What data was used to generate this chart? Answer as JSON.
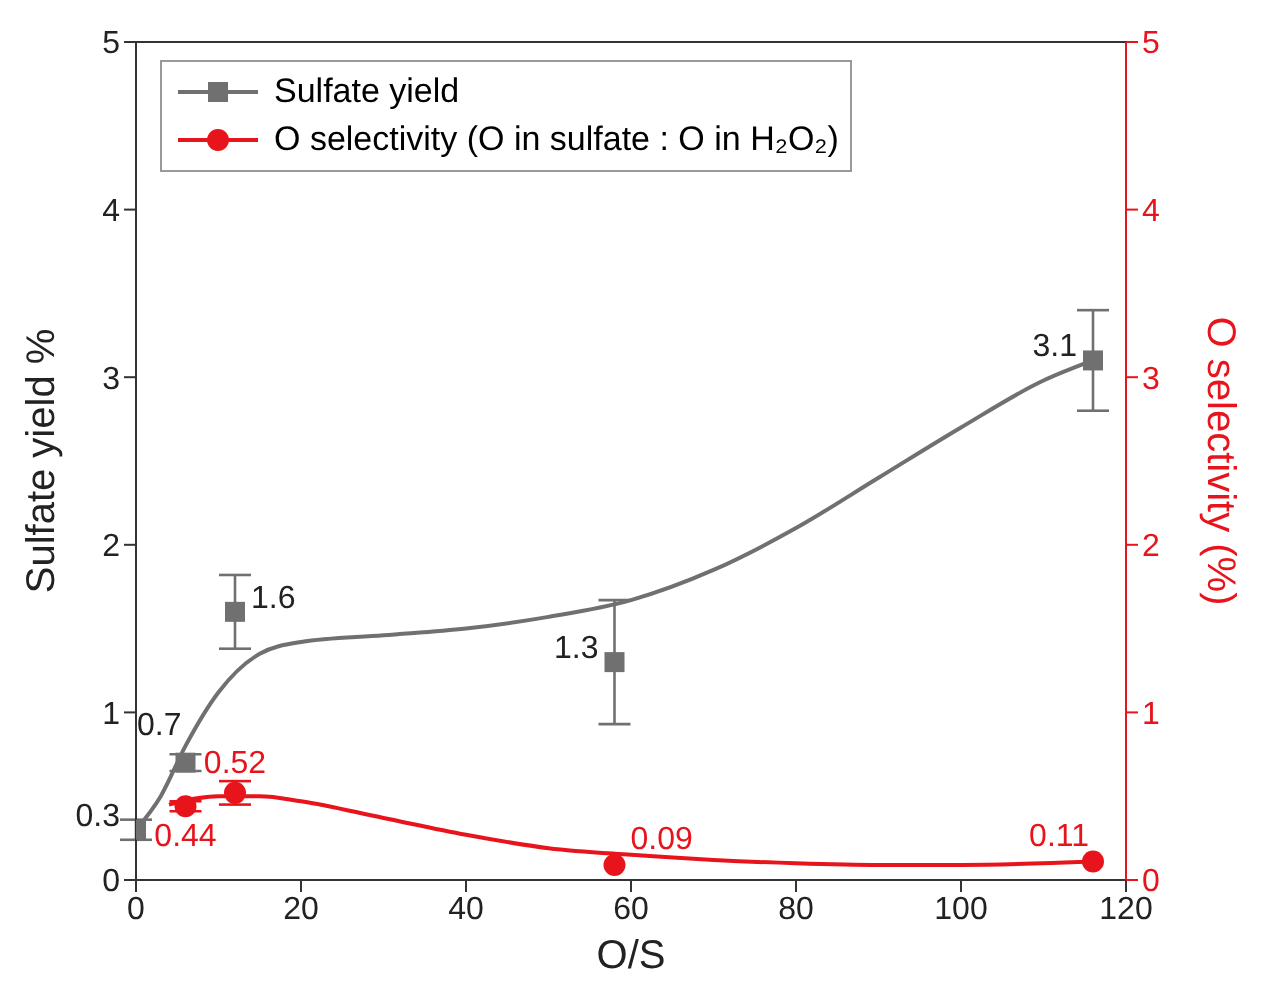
{
  "chart_data": {
    "type": "scatter",
    "xlabel": "O/S",
    "ylabel": "Sulfate yield %",
    "y2label": "O selectivity (%)",
    "xlim": [
      0,
      120
    ],
    "xticks": [
      0,
      20,
      40,
      60,
      80,
      100,
      120
    ],
    "ylim": [
      0,
      5
    ],
    "yticks": [
      0,
      1,
      2,
      3,
      4,
      5
    ],
    "y2lim": [
      0,
      5
    ],
    "y2ticks": [
      0,
      1,
      2,
      3,
      4,
      5
    ],
    "legend": "top left",
    "series": [
      {
        "name": "Sulfate yield",
        "marker": "square",
        "color": "#707070",
        "x": [
          0,
          6,
          12,
          58,
          116
        ],
        "values": [
          0.3,
          0.7,
          1.6,
          1.3,
          3.1
        ],
        "value_labels": [
          "0.3",
          "0.7",
          "1.6",
          "1.3",
          "3.1"
        ],
        "errors": [
          0.06,
          0.05,
          [
            1.38,
            1.82
          ],
          [
            0.93,
            1.67
          ],
          [
            2.8,
            3.4
          ]
        ]
      },
      {
        "name": "O selectivity (O in sulfate : O in H₂O₂)",
        "marker": "circle",
        "axis": "y2",
        "color": "#e8141c",
        "x": [
          6,
          12,
          58,
          116
        ],
        "values": [
          0.44,
          0.52,
          0.09,
          0.11
        ],
        "value_labels": [
          "0.44",
          "0.52",
          "0.09",
          "0.11"
        ],
        "errors": [
          0.03,
          0.07,
          null,
          null
        ]
      },
      {
        "type": "line",
        "marker": "none",
        "color": "#707070",
        "x": [
          0,
          3,
          6,
          10,
          15,
          20,
          30,
          40,
          50,
          60,
          70,
          80,
          90,
          100,
          110,
          116
        ],
        "values": [
          0.3,
          0.5,
          0.8,
          1.12,
          1.35,
          1.42,
          1.46,
          1.5,
          1.57,
          1.67,
          1.85,
          2.1,
          2.4,
          2.7,
          2.98,
          3.1
        ]
      },
      {
        "type": "line",
        "marker": "none",
        "axis": "y2",
        "color": "#e8141c",
        "x": [
          4,
          10,
          15,
          20,
          30,
          40,
          50,
          60,
          70,
          80,
          90,
          100,
          116
        ],
        "values": [
          0.45,
          0.5,
          0.5,
          0.47,
          0.37,
          0.27,
          0.19,
          0.15,
          0.12,
          0.1,
          0.09,
          0.09,
          0.11
        ]
      }
    ]
  }
}
